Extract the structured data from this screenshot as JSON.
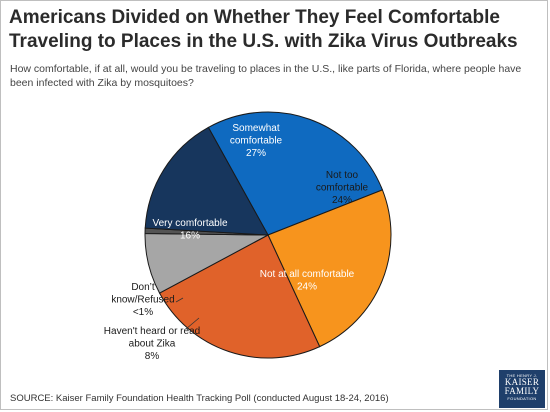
{
  "title": "Americans Divided on Whether They Feel Comfortable Traveling to Places in the U.S. with Zika Virus Outbreaks",
  "subtitle": "How comfortable, if at all, would you be traveling to places in the U.S., like parts of Florida, where people have been infected with Zika by mosquitoes?",
  "source": "SOURCE: Kaiser Family Foundation Health Tracking Poll (conducted August 18-24, 2016)",
  "logo": {
    "line1": "THE HENRY J.",
    "line2": "KAISER",
    "line3": "FAMILY",
    "line4": "FOUNDATION"
  },
  "chart_data": {
    "type": "pie",
    "title": "Americans Divided on Whether They Feel Comfortable Traveling to Places in the U.S. with Zika Virus Outbreaks",
    "slices": [
      {
        "label": "Somewhat comfortable",
        "value": 27,
        "value_label": "27%",
        "color": "#0f6ac0"
      },
      {
        "label": "Not too comfortable",
        "value": 24,
        "value_label": "24%",
        "color": "#f7941d"
      },
      {
        "label": "Not at all comfortable",
        "value": 24,
        "value_label": "24%",
        "color": "#e0622a"
      },
      {
        "label": "Haven't heard or read about Zika",
        "value": 8,
        "value_label": "8%",
        "color": "#a6a6a6"
      },
      {
        "label": "Don't know/Refused",
        "value": 0.7,
        "value_label": "<1%",
        "color": "#545454"
      },
      {
        "label": "Very comfortable",
        "value": 16,
        "value_label": "16%",
        "color": "#17365d"
      }
    ]
  }
}
